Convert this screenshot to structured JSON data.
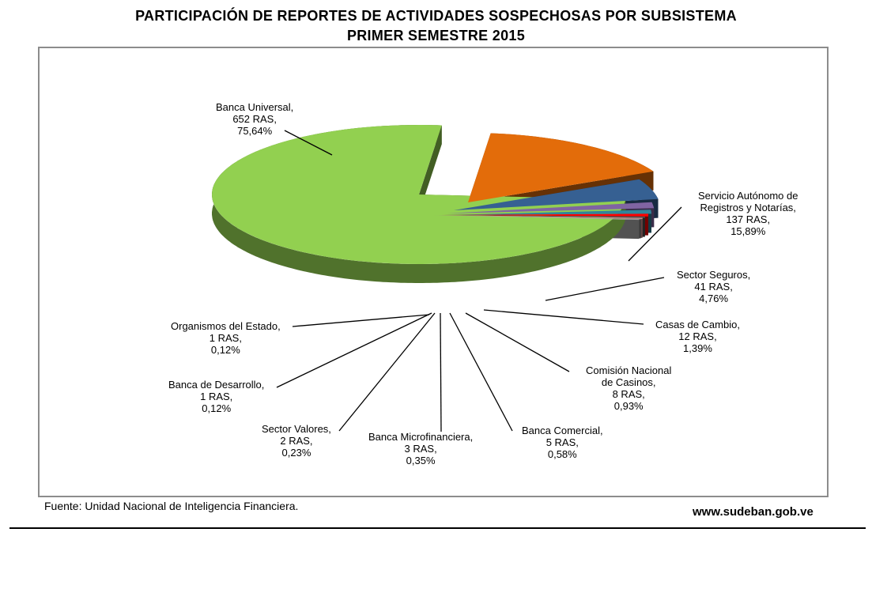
{
  "header": {
    "title": "PARTICIPACIÓN DE REPORTES DE ACTIVIDADES SOSPECHOSAS POR SUBSISTEMA",
    "subtitle": "PRIMER SEMESTRE 2015"
  },
  "footer": {
    "source": "Fuente: Unidad Nacional de Inteligencia Financiera.",
    "website": "www.sudeban.gob.ve"
  },
  "chart_data": {
    "type": "pie",
    "title": "PARTICIPACIÓN DE REPORTES DE ACTIVIDADES SOSPECHOSAS POR SUBSISTEMA",
    "subtitle": "PRIMER SEMESTRE 2015",
    "style": "3d-exploded",
    "slices": [
      {
        "key": "universal",
        "label_lines": [
          "Banca Universal,",
          "652 RAS,",
          "75,64%"
        ],
        "value": 652,
        "percent": 75.64,
        "color": "#92d050"
      },
      {
        "key": "saren",
        "label_lines": [
          "Servicio Autónomo de",
          "Registros y Notarías,",
          "137 RAS,",
          "15,89%"
        ],
        "value": 137,
        "percent": 15.89,
        "color": "#e36c0a"
      },
      {
        "key": "seguros",
        "label_lines": [
          "Sector Seguros,",
          "41 RAS,",
          "4,76%"
        ],
        "value": 41,
        "percent": 4.76,
        "color": "#366092"
      },
      {
        "key": "cambio",
        "label_lines": [
          "Casas de Cambio,",
          "12 RAS,",
          "1,39%"
        ],
        "value": 12,
        "percent": 1.39,
        "color": "#8064a2"
      },
      {
        "key": "casinos",
        "label_lines": [
          "Comisión Nacional",
          "de Casinos,",
          "8 RAS,",
          "0,93%"
        ],
        "value": 8,
        "percent": 0.93,
        "color": "#31849b"
      },
      {
        "key": "comercial",
        "label_lines": [
          "Banca Comercial,",
          "5 RAS,",
          "0,58%"
        ],
        "value": 5,
        "percent": 0.58,
        "color": "#ff0000"
      },
      {
        "key": "micro",
        "label_lines": [
          "Banca Microfinanciera,",
          "3 RAS,",
          "0,35%"
        ],
        "value": 3,
        "percent": 0.35,
        "color": "#4f4f4f"
      },
      {
        "key": "valores",
        "label_lines": [
          "Sector Valores,",
          "2 RAS,",
          "0,23%"
        ],
        "value": 2,
        "percent": 0.23,
        "color": "#d99694"
      },
      {
        "key": "desarrollo",
        "label_lines": [
          "Banca de Desarrollo,",
          "1 RAS,",
          "0,12%"
        ],
        "value": 1,
        "percent": 0.12,
        "color": "#7f7f7f"
      },
      {
        "key": "estado",
        "label_lines": [
          "Organismos del Estado,",
          "1 RAS,",
          "0,12%"
        ],
        "value": 1,
        "percent": 0.12,
        "color": "#b7b7b7"
      }
    ]
  }
}
